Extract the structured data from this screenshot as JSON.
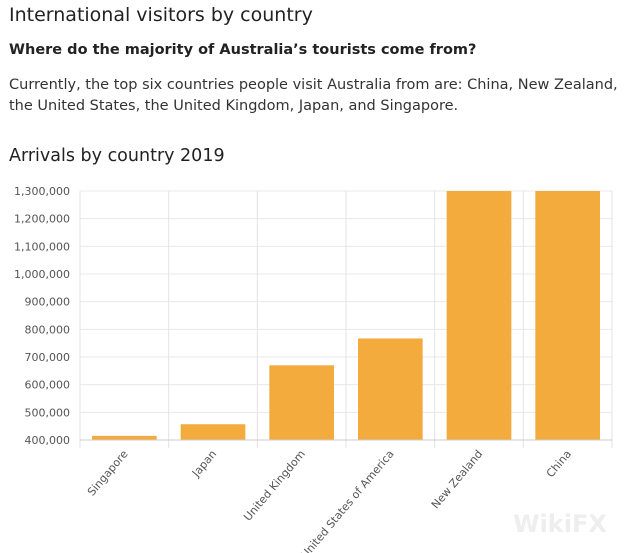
{
  "page": {
    "title": "International visitors by country",
    "subtitle": "Where do the majority of Australia’s tourists come from?",
    "paragraph": "Currently, the top six countries people visit Australia from are: China, New Zealand, the United States, the United Kingdom, Japan, and Singapore."
  },
  "watermark": "WikiFX",
  "chart_data": {
    "type": "bar",
    "title": "Arrivals by country 2019",
    "xlabel": "",
    "ylabel": "",
    "categories": [
      "Singapore",
      "Japan",
      "United Kingdom",
      "United States of America",
      "New Zealand",
      "China"
    ],
    "values": [
      415000,
      457000,
      670000,
      767000,
      1300000,
      1300000
    ],
    "note_clipped": "New Zealand and China bars exceed the axis maximum",
    "ylim": [
      400000,
      1300000
    ],
    "yticks": [
      "400,000",
      "500,000",
      "600,000",
      "700,000",
      "800,000",
      "900,000",
      "1,000,000",
      "1,100,000",
      "1,200,000",
      "1,300,000"
    ],
    "grid": true,
    "color": "#f3ab3d"
  }
}
